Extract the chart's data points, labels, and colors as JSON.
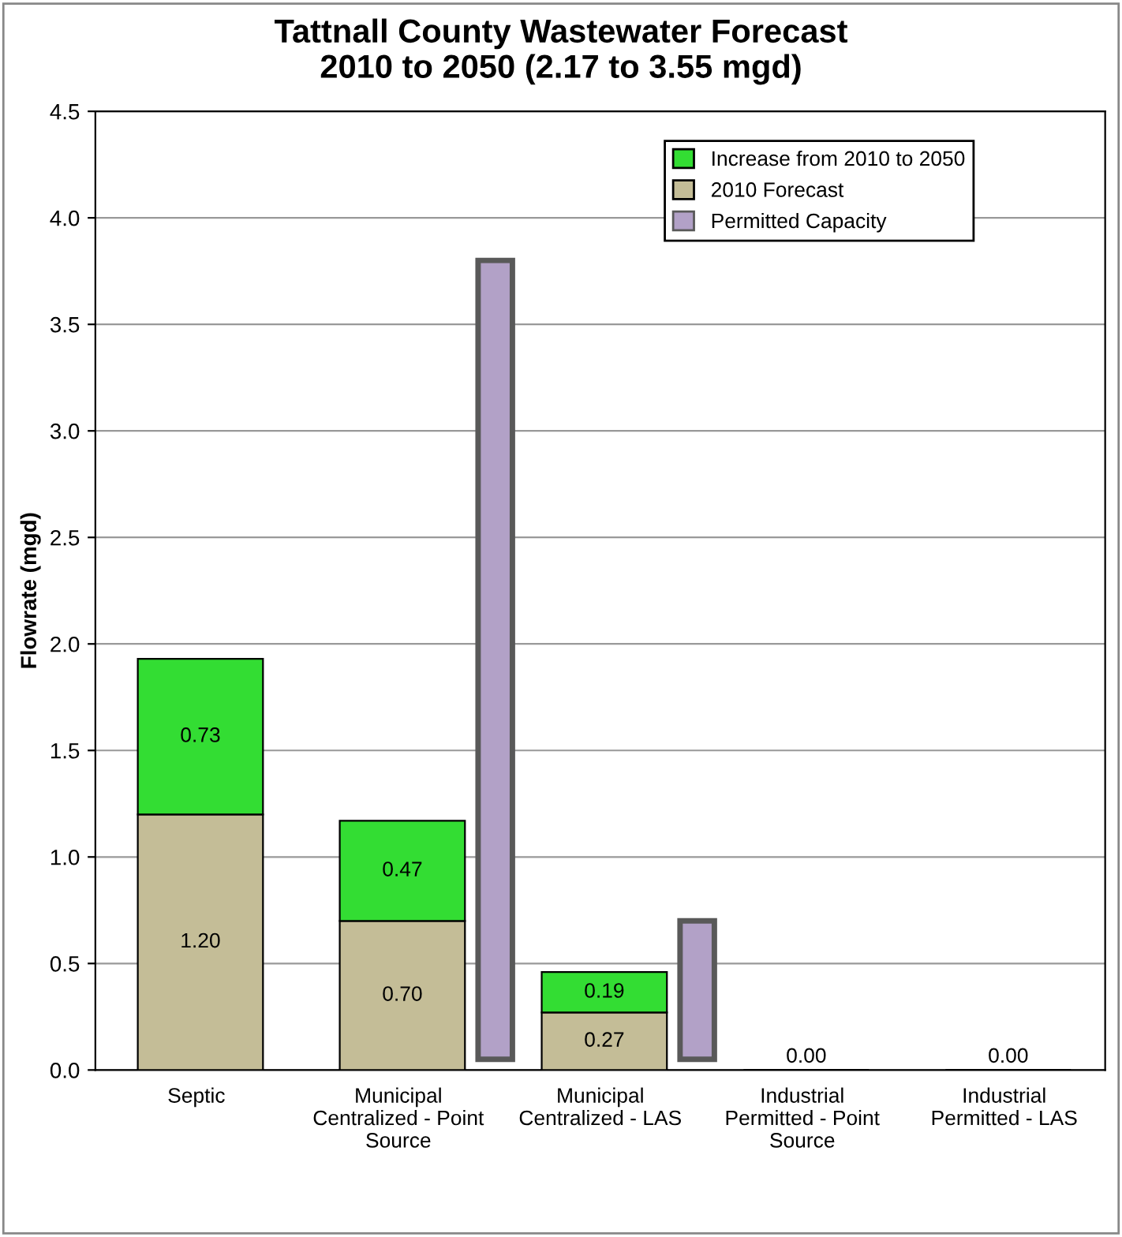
{
  "chart_data": [
    {
      "type": "bar",
      "title": "Tattnall County Wastewater Forecast\n2010 to 2050 (2.17 to 3.55 mgd)",
      "ylabel": "Flowrate (mgd)",
      "categories": [
        "Septic",
        "Municipal\nCentralized - Point\nSource",
        "Municipal\nCentralized - LAS",
        "Industrial\nPermitted - Point\nSource",
        "Industrial\nPermitted - LAS"
      ],
      "stacked": true,
      "series": [
        {
          "name": "2010 Forecast",
          "color": "#c4bd97",
          "values": [
            1.2,
            0.7,
            0.27,
            0.0,
            0.0
          ],
          "value_labels": [
            "1.20",
            "0.70",
            "0.27",
            "0.00",
            "0.00"
          ]
        },
        {
          "name": "Increase from 2010 to 2050",
          "color": "#33dd33",
          "values": [
            0.73,
            0.47,
            0.19,
            0.0,
            0.0
          ],
          "value_labels": [
            "0.73",
            "0.47",
            "0.19",
            null,
            null
          ]
        }
      ],
      "ylim": [
        0,
        4.5
      ],
      "yticks": [
        {
          "value": 0,
          "label": "0.0"
        },
        0.5,
        {
          "value": 1,
          "label": "1.0"
        },
        1.5,
        {
          "value": 2,
          "label": "2.0"
        },
        2.5,
        {
          "value": 3,
          "label": "3.0"
        },
        3.5,
        {
          "value": 4,
          "label": "4.0"
        },
        4.5
      ],
      "grid": "y",
      "legend": "top right"
    },
    {
      "type": "bar",
      "categories": [
        null,
        null,
        null,
        null,
        null
      ],
      "series": [
        {
          "name": "Permitted Capacity",
          "color": "#b2a1c7",
          "base": [
            null,
            0.05,
            0.05,
            null,
            null
          ],
          "values": [
            null,
            3.75,
            0.65,
            null,
            null
          ]
        }
      ],
      "ylim": [
        0,
        4.5
      ],
      "tick_labels": false
    }
  ]
}
